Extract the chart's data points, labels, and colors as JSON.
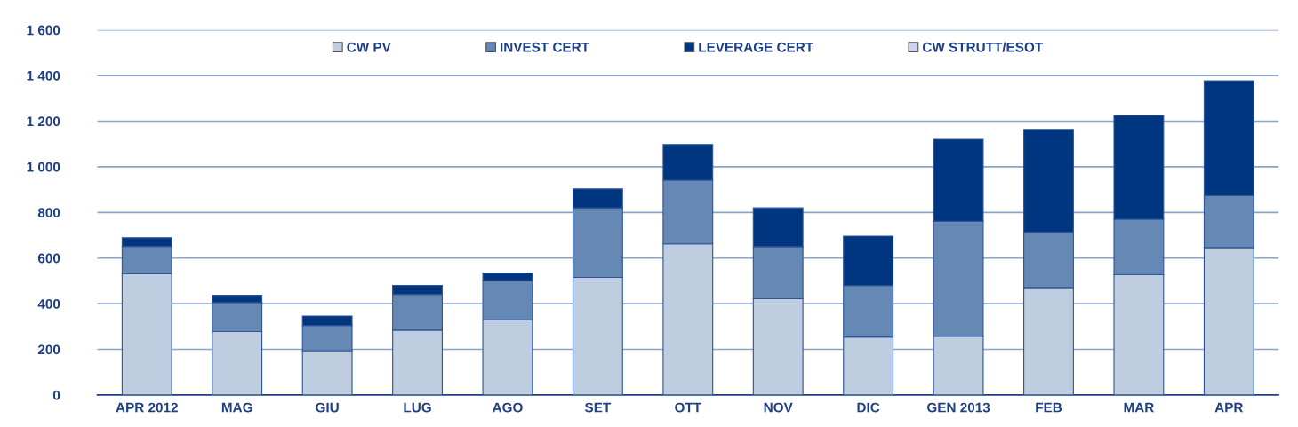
{
  "chart_data": {
    "type": "bar",
    "stacked": true,
    "categories": [
      "APR 2012",
      "MAG",
      "GIU",
      "LUG",
      "AGO",
      "SET",
      "OTT",
      "NOV",
      "DIC",
      "GEN 2013",
      "FEB",
      "MAR",
      "APR"
    ],
    "series": [
      {
        "name": "CW PV",
        "color": "#bfcde0",
        "values": [
          531,
          278,
          194,
          284,
          329,
          515,
          662,
          422,
          254,
          258,
          471,
          527,
          646
        ]
      },
      {
        "name": "INVEST CERT",
        "color": "#6688b4",
        "values": [
          120,
          127,
          110,
          157,
          172,
          305,
          279,
          228,
          225,
          503,
          242,
          243,
          228
        ]
      },
      {
        "name": "LEVERAGE CERT",
        "color": "#003580",
        "values": [
          38,
          32,
          42,
          39,
          33,
          83,
          157,
          170,
          217,
          359,
          451,
          455,
          503
        ]
      },
      {
        "name": "CW STRUTT/ESOT",
        "color": "#d0d0f0",
        "values": [
          null,
          null,
          null,
          null,
          null,
          null,
          null,
          null,
          null,
          null,
          null,
          null,
          null
        ]
      }
    ],
    "ylim": [
      0,
      1600
    ],
    "yticks": [
      0,
      200,
      400,
      600,
      800,
      {
        "value": 1000,
        "label": "1 000"
      },
      {
        "value": 1200,
        "label": "1 200"
      },
      {
        "value": 1400,
        "label": "1 400"
      },
      {
        "value": 1600,
        "label": "1 600"
      }
    ],
    "grid": "y",
    "legend": "top"
  }
}
